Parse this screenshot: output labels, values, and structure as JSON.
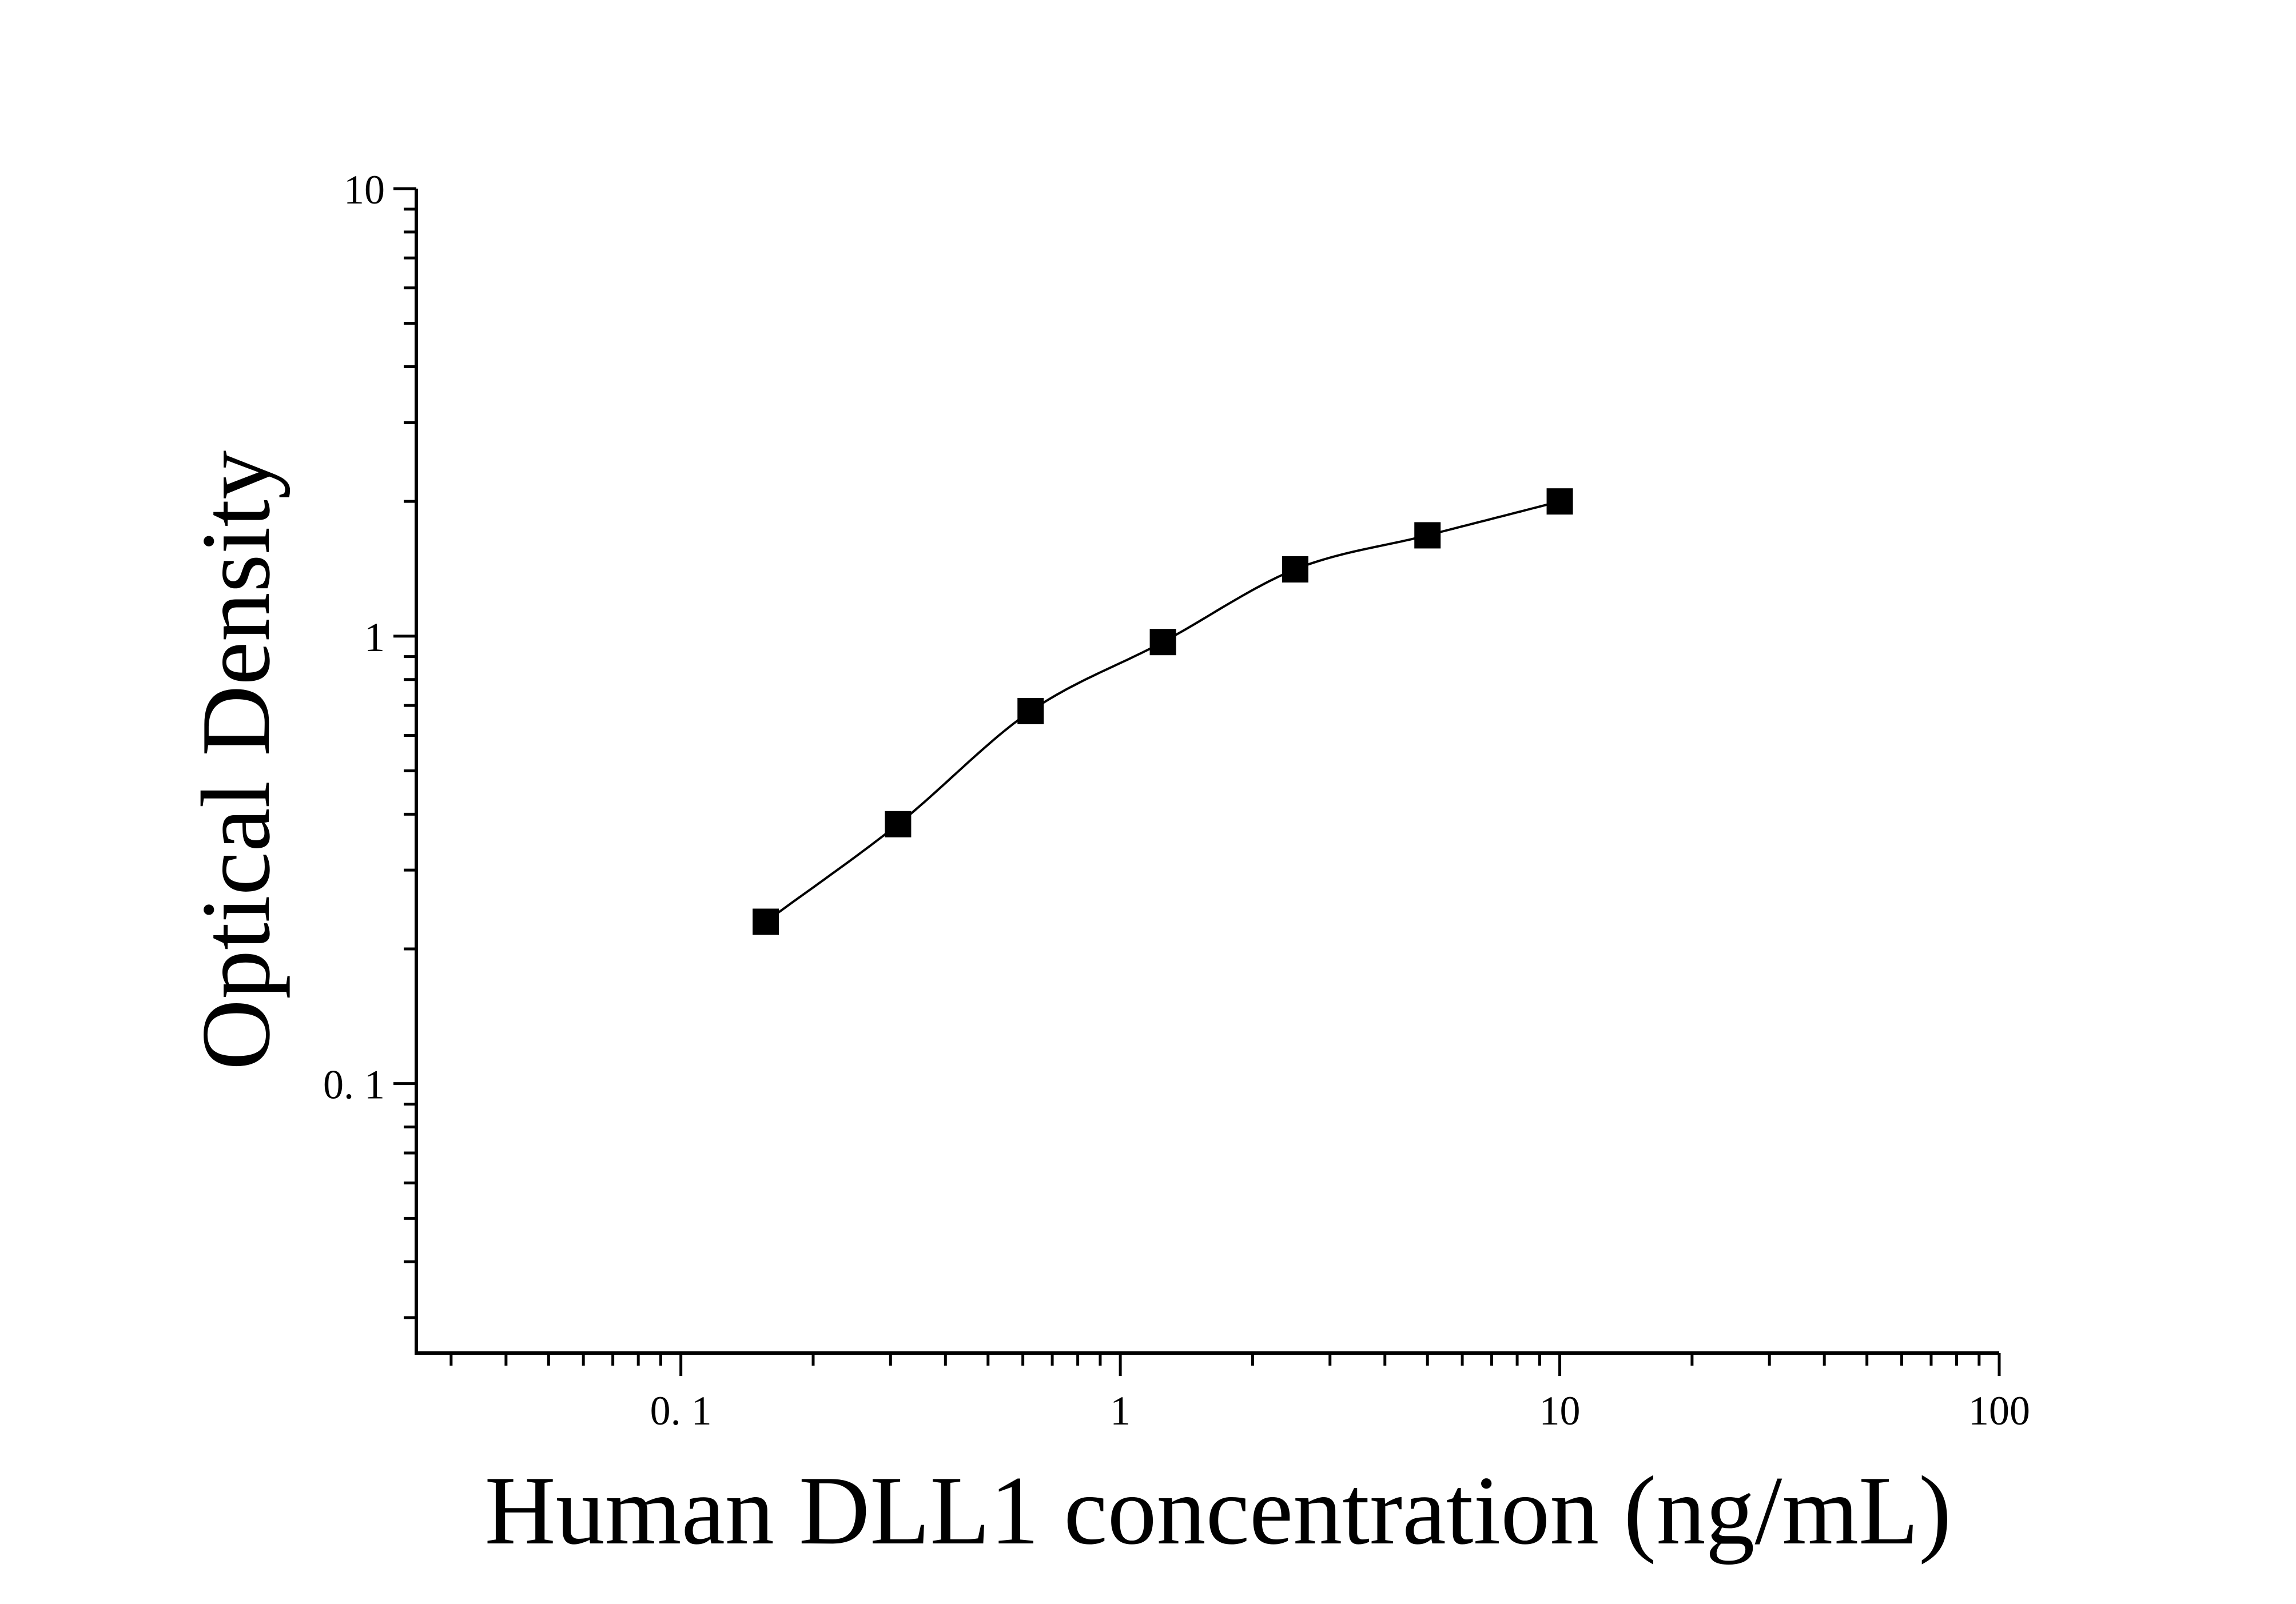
{
  "chart_data": {
    "type": "scatter",
    "title": "",
    "xlabel": "Human DLL1 concentration (ng/mL)",
    "ylabel": "Optical Density",
    "x_scale": "log",
    "y_scale": "log",
    "xlim": [
      0.025,
      100
    ],
    "ylim": [
      0.025,
      10
    ],
    "x_ticks": [
      {
        "value": 0.1,
        "label": "0. 1"
      },
      {
        "value": 1,
        "label": "1"
      },
      {
        "value": 10,
        "label": "10"
      },
      {
        "value": 100,
        "label": "100"
      }
    ],
    "y_ticks": [
      {
        "value": 0.1,
        "label": "0. 1"
      },
      {
        "value": 1,
        "label": "1"
      },
      {
        "value": 10,
        "label": "10"
      }
    ],
    "grid": false,
    "marker": "square",
    "marker_color": "#000000",
    "line_color": "#000000",
    "series": [
      {
        "x": [
          0.156,
          0.312,
          0.625,
          1.25,
          2.5,
          5,
          10
        ],
        "y": [
          0.23,
          0.38,
          0.68,
          0.97,
          1.41,
          1.68,
          2.0
        ],
        "fit_curve": true
      }
    ]
  }
}
